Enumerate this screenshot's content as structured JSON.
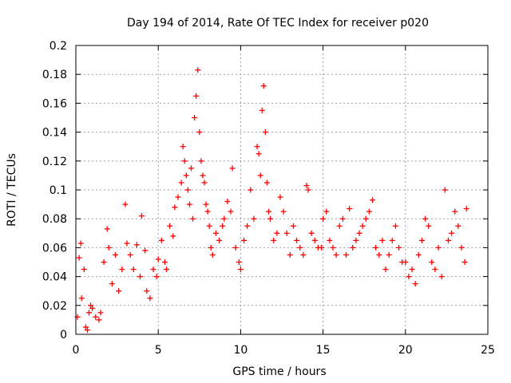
{
  "chart_data": {
    "type": "scatter",
    "title": "Day 194 of 2014, Rate Of TEC Index for receiver p020",
    "xlabel": "GPS time / hours",
    "ylabel": "ROTI / TECUs",
    "xlim": [
      0,
      25
    ],
    "ylim": [
      0,
      0.2
    ],
    "xticks": [
      0,
      5,
      10,
      15,
      20,
      25
    ],
    "yticks": [
      0,
      0.02,
      0.04,
      0.06,
      0.08,
      0.1,
      0.12,
      0.14,
      0.16,
      0.18,
      0.2
    ],
    "xtick_labels": [
      "0",
      "5",
      "10",
      "15",
      "20",
      "25"
    ],
    "ytick_labels": [
      "0",
      "0.02",
      "0.04",
      "0.06",
      "0.08",
      "0.1",
      "0.12",
      "0.14",
      "0.16",
      "0.18",
      "0.2"
    ],
    "grid": true,
    "marker": "plus",
    "color": "#ff0000",
    "series": [
      {
        "x": [
          0.1,
          0.2,
          0.3,
          0.35,
          0.5,
          0.6,
          0.7,
          0.8,
          0.9,
          1.0,
          1.2,
          1.4,
          1.5,
          1.7,
          1.9,
          2.0,
          2.2,
          2.4,
          2.6,
          2.8,
          3.0,
          3.1,
          3.3,
          3.5,
          3.7,
          3.9,
          4.0,
          4.2,
          4.3,
          4.5,
          4.7,
          4.9,
          5.0,
          5.2,
          5.4,
          5.5,
          5.7,
          5.9,
          6.0,
          6.2,
          6.4,
          6.5,
          6.6,
          6.7,
          6.8,
          6.9,
          7.0,
          7.1,
          7.2,
          7.3,
          7.4,
          7.5,
          7.6,
          7.7,
          7.8,
          7.9,
          8.0,
          8.1,
          8.2,
          8.3,
          8.5,
          8.7,
          8.9,
          9.0,
          9.2,
          9.4,
          9.5,
          9.7,
          9.9,
          10.0,
          10.2,
          10.4,
          10.6,
          10.8,
          11.0,
          11.1,
          11.2,
          11.3,
          11.4,
          11.5,
          11.6,
          11.7,
          11.8,
          12.0,
          12.2,
          12.4,
          12.6,
          12.8,
          13.0,
          13.2,
          13.4,
          13.6,
          13.8,
          14.0,
          14.1,
          14.3,
          14.5,
          14.7,
          14.9,
          15.0,
          15.2,
          15.4,
          15.6,
          15.8,
          16.0,
          16.2,
          16.4,
          16.6,
          16.8,
          17.0,
          17.2,
          17.4,
          17.6,
          17.8,
          18.0,
          18.2,
          18.4,
          18.6,
          18.8,
          19.0,
          19.2,
          19.4,
          19.6,
          19.8,
          20.0,
          20.2,
          20.4,
          20.6,
          20.8,
          21.0,
          21.2,
          21.4,
          21.6,
          21.8,
          22.0,
          22.2,
          22.4,
          22.6,
          22.8,
          23.0,
          23.2,
          23.4,
          23.6,
          23.7
        ],
        "y": [
          0.012,
          0.053,
          0.063,
          0.025,
          0.045,
          0.005,
          0.003,
          0.015,
          0.02,
          0.018,
          0.012,
          0.01,
          0.015,
          0.05,
          0.073,
          0.06,
          0.035,
          0.055,
          0.03,
          0.045,
          0.09,
          0.063,
          0.055,
          0.045,
          0.062,
          0.04,
          0.082,
          0.058,
          0.03,
          0.025,
          0.045,
          0.04,
          0.052,
          0.065,
          0.05,
          0.045,
          0.075,
          0.068,
          0.088,
          0.095,
          0.105,
          0.13,
          0.12,
          0.11,
          0.1,
          0.09,
          0.115,
          0.08,
          0.15,
          0.165,
          0.183,
          0.14,
          0.12,
          0.11,
          0.105,
          0.09,
          0.085,
          0.075,
          0.06,
          0.055,
          0.07,
          0.065,
          0.075,
          0.08,
          0.092,
          0.085,
          0.115,
          0.06,
          0.05,
          0.045,
          0.065,
          0.075,
          0.1,
          0.08,
          0.13,
          0.125,
          0.11,
          0.155,
          0.172,
          0.14,
          0.105,
          0.085,
          0.08,
          0.065,
          0.07,
          0.095,
          0.085,
          0.07,
          0.055,
          0.075,
          0.065,
          0.06,
          0.055,
          0.103,
          0.1,
          0.07,
          0.065,
          0.06,
          0.06,
          0.08,
          0.085,
          0.065,
          0.06,
          0.055,
          0.075,
          0.08,
          0.055,
          0.087,
          0.06,
          0.065,
          0.07,
          0.075,
          0.08,
          0.085,
          0.093,
          0.06,
          0.055,
          0.065,
          0.045,
          0.055,
          0.065,
          0.075,
          0.06,
          0.05,
          0.05,
          0.04,
          0.045,
          0.035,
          0.055,
          0.065,
          0.08,
          0.075,
          0.05,
          0.045,
          0.06,
          0.04,
          0.1,
          0.065,
          0.07,
          0.085,
          0.075,
          0.06,
          0.05,
          0.087
        ]
      }
    ]
  }
}
